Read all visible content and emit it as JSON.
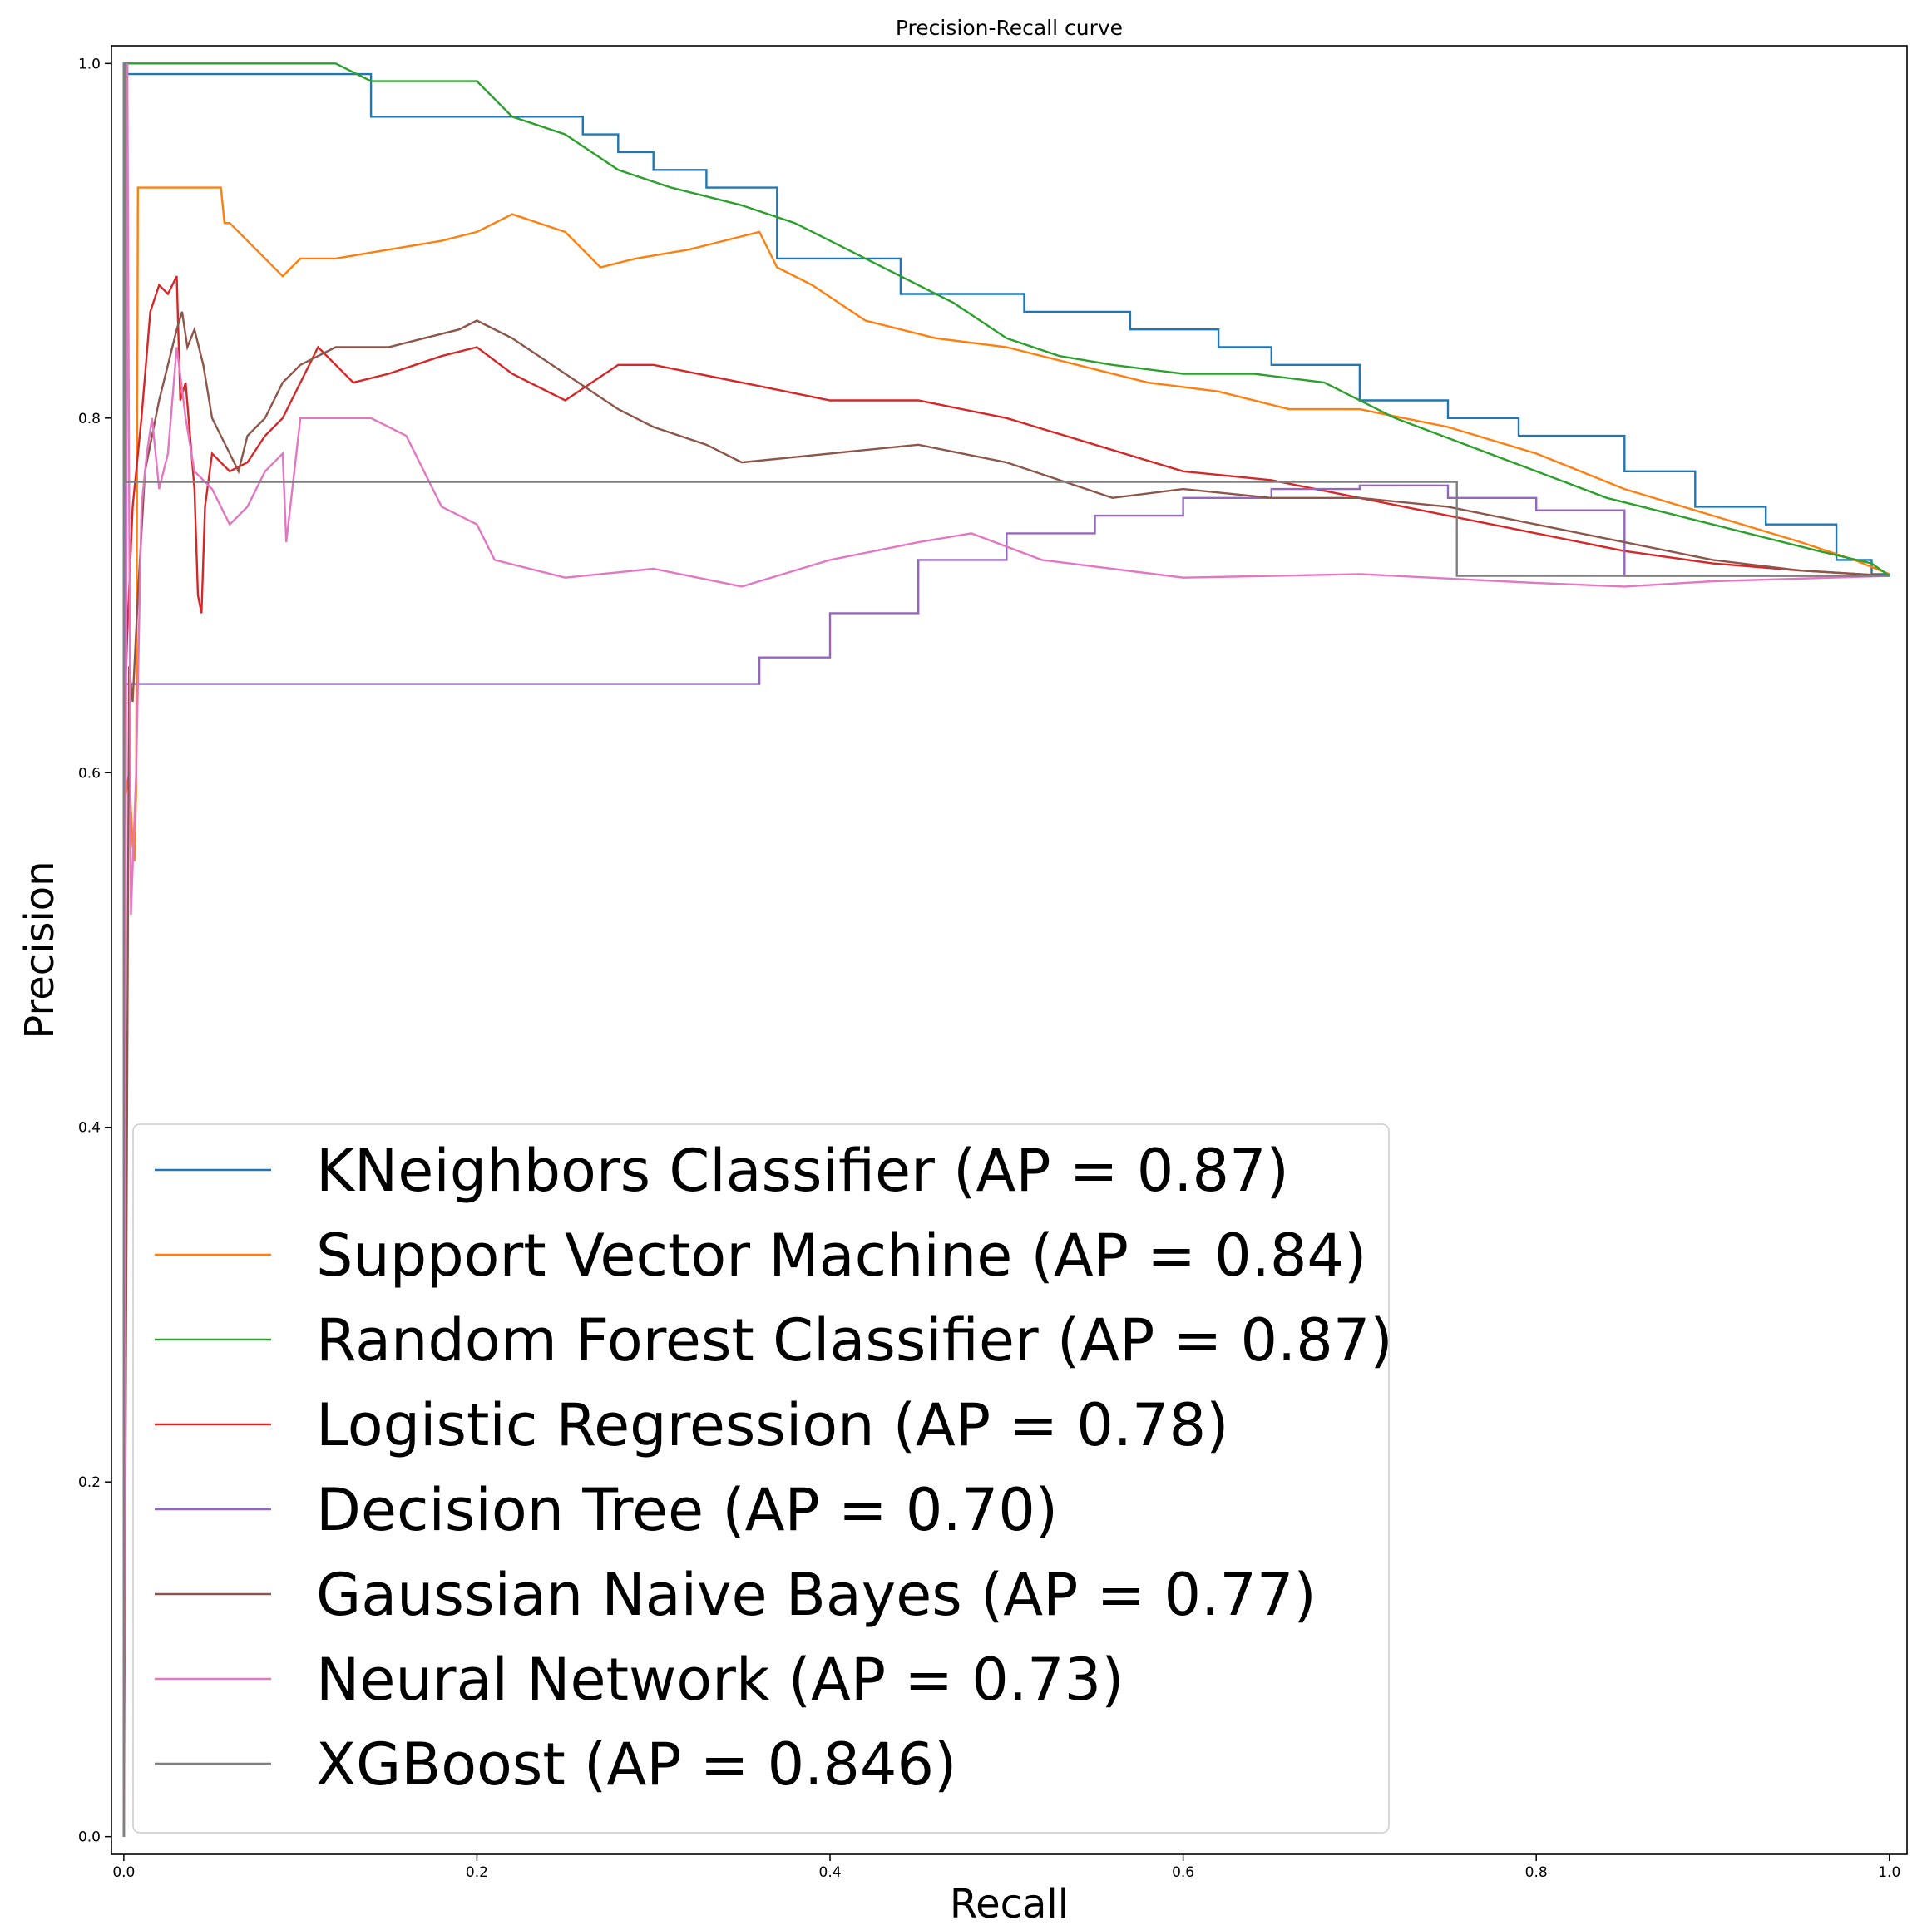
{
  "chart_data": {
    "type": "line",
    "title": "Precision-Recall curve",
    "xlabel": "Recall",
    "ylabel": "Precision",
    "xlim": [
      -0.007,
      1.01
    ],
    "ylim": [
      -0.01,
      1.01
    ],
    "xticks": [
      0.0,
      0.2,
      0.4,
      0.6,
      0.8,
      1.0
    ],
    "xtick_labels": [
      "0.0",
      "0.2",
      "0.4",
      "0.6",
      "0.8",
      "1.0"
    ],
    "yticks": [
      0.0,
      0.2,
      0.4,
      0.6,
      0.8,
      1.0
    ],
    "ytick_labels": [
      "0.0",
      "0.2",
      "0.4",
      "0.6",
      "0.8",
      "1.0"
    ],
    "grid": false,
    "legend_position": "lower-left",
    "series": [
      {
        "name": "KNeighbors Classifier (AP = 0.87)",
        "color": "#1f77b4",
        "step": true,
        "x": [
          0.0,
          0.0,
          0.002,
          0.12,
          0.14,
          0.2,
          0.26,
          0.28,
          0.3,
          0.33,
          0.37,
          0.38,
          0.44,
          0.49,
          0.51,
          0.57,
          0.62,
          0.65,
          0.7,
          0.75,
          0.79,
          0.85,
          0.89,
          0.93,
          0.97,
          0.99,
          1.0
        ],
        "y": [
          0.0,
          1.0,
          0.994,
          0.994,
          0.97,
          0.97,
          0.96,
          0.95,
          0.94,
          0.93,
          0.89,
          0.89,
          0.87,
          0.87,
          0.86,
          0.85,
          0.84,
          0.83,
          0.81,
          0.8,
          0.79,
          0.77,
          0.75,
          0.74,
          0.72,
          0.712,
          0.711
        ]
      },
      {
        "name": "Support Vector Machine (AP = 0.84)",
        "color": "#ff7f0e",
        "step": false,
        "x": [
          0.0,
          0.003,
          0.005,
          0.006,
          0.007,
          0.008,
          0.01,
          0.02,
          0.04,
          0.055,
          0.057,
          0.06,
          0.07,
          0.08,
          0.09,
          0.095,
          0.1,
          0.12,
          0.15,
          0.18,
          0.2,
          0.22,
          0.25,
          0.27,
          0.29,
          0.32,
          0.36,
          0.37,
          0.39,
          0.42,
          0.46,
          0.5,
          0.54,
          0.58,
          0.62,
          0.66,
          0.7,
          0.75,
          0.8,
          0.85,
          0.9,
          0.95,
          0.98,
          1.0
        ],
        "y": [
          0.58,
          0.6,
          0.56,
          0.55,
          0.59,
          0.93,
          0.93,
          0.93,
          0.93,
          0.93,
          0.91,
          0.91,
          0.9,
          0.89,
          0.88,
          0.885,
          0.89,
          0.89,
          0.895,
          0.9,
          0.905,
          0.915,
          0.905,
          0.885,
          0.89,
          0.895,
          0.905,
          0.885,
          0.875,
          0.855,
          0.845,
          0.84,
          0.83,
          0.82,
          0.815,
          0.805,
          0.805,
          0.795,
          0.78,
          0.76,
          0.745,
          0.73,
          0.72,
          0.712
        ]
      },
      {
        "name": "Random Forest Classifier (AP = 0.87)",
        "color": "#2ca02c",
        "step": false,
        "x": [
          0.0,
          0.001,
          0.12,
          0.14,
          0.2,
          0.22,
          0.25,
          0.28,
          0.31,
          0.35,
          0.38,
          0.41,
          0.44,
          0.47,
          0.5,
          0.53,
          0.56,
          0.6,
          0.64,
          0.68,
          0.72,
          0.76,
          0.8,
          0.84,
          0.88,
          0.92,
          0.96,
          0.99,
          1.0
        ],
        "y": [
          0.0,
          1.0,
          1.0,
          0.99,
          0.99,
          0.97,
          0.96,
          0.94,
          0.93,
          0.92,
          0.91,
          0.895,
          0.88,
          0.865,
          0.845,
          0.835,
          0.83,
          0.825,
          0.825,
          0.82,
          0.8,
          0.785,
          0.77,
          0.755,
          0.745,
          0.735,
          0.725,
          0.718,
          0.711
        ]
      },
      {
        "name": "Logistic Regression (AP = 0.78)",
        "color": "#d62728",
        "step": false,
        "x": [
          0.0,
          0.002,
          0.005,
          0.01,
          0.015,
          0.02,
          0.025,
          0.03,
          0.032,
          0.035,
          0.04,
          0.042,
          0.044,
          0.046,
          0.05,
          0.06,
          0.07,
          0.08,
          0.09,
          0.1,
          0.11,
          0.13,
          0.15,
          0.18,
          0.2,
          0.22,
          0.25,
          0.28,
          0.3,
          0.35,
          0.4,
          0.45,
          0.5,
          0.55,
          0.6,
          0.65,
          0.7,
          0.75,
          0.8,
          0.85,
          0.9,
          0.95,
          1.0
        ],
        "y": [
          0.62,
          0.68,
          0.75,
          0.8,
          0.86,
          0.875,
          0.87,
          0.88,
          0.81,
          0.82,
          0.76,
          0.7,
          0.69,
          0.75,
          0.78,
          0.77,
          0.775,
          0.79,
          0.8,
          0.82,
          0.84,
          0.82,
          0.825,
          0.835,
          0.84,
          0.825,
          0.81,
          0.83,
          0.83,
          0.82,
          0.81,
          0.81,
          0.8,
          0.785,
          0.77,
          0.765,
          0.755,
          0.745,
          0.735,
          0.725,
          0.718,
          0.714,
          0.711
        ]
      },
      {
        "name": "Decision Tree (AP = 0.70)",
        "color": "#9467bd",
        "step": true,
        "x": [
          0.0,
          0.0,
          0.001,
          0.345,
          0.36,
          0.4,
          0.45,
          0.5,
          0.55,
          0.6,
          0.65,
          0.7,
          0.75,
          0.8,
          0.85,
          0.85,
          1.0
        ],
        "y": [
          0.0,
          1.0,
          0.65,
          0.65,
          0.665,
          0.69,
          0.72,
          0.735,
          0.745,
          0.755,
          0.76,
          0.762,
          0.755,
          0.748,
          0.745,
          0.711,
          0.711
        ]
      },
      {
        "name": "Gaussian Naive Bayes (AP = 0.77)",
        "color": "#8c564b",
        "step": false,
        "x": [
          0.0,
          0.003,
          0.005,
          0.008,
          0.012,
          0.016,
          0.02,
          0.025,
          0.03,
          0.033,
          0.036,
          0.04,
          0.045,
          0.05,
          0.055,
          0.06,
          0.065,
          0.07,
          0.08,
          0.09,
          0.1,
          0.12,
          0.15,
          0.17,
          0.19,
          0.2,
          0.22,
          0.25,
          0.28,
          0.3,
          0.33,
          0.35,
          0.4,
          0.45,
          0.5,
          0.53,
          0.56,
          0.6,
          0.65,
          0.7,
          0.75,
          0.8,
          0.85,
          0.9,
          0.95,
          1.0
        ],
        "y": [
          0.0,
          0.66,
          0.64,
          0.7,
          0.77,
          0.79,
          0.81,
          0.83,
          0.85,
          0.86,
          0.84,
          0.85,
          0.83,
          0.8,
          0.79,
          0.78,
          0.77,
          0.79,
          0.8,
          0.82,
          0.83,
          0.84,
          0.84,
          0.845,
          0.85,
          0.855,
          0.845,
          0.825,
          0.805,
          0.795,
          0.785,
          0.775,
          0.78,
          0.785,
          0.775,
          0.765,
          0.755,
          0.76,
          0.755,
          0.755,
          0.75,
          0.74,
          0.73,
          0.72,
          0.714,
          0.711
        ]
      },
      {
        "name": "Neural Network (AP = 0.73)",
        "color": "#e377c2",
        "step": false,
        "x": [
          0.0,
          0.002,
          0.004,
          0.007,
          0.01,
          0.013,
          0.016,
          0.02,
          0.025,
          0.03,
          0.035,
          0.04,
          0.05,
          0.06,
          0.07,
          0.08,
          0.09,
          0.092,
          0.1,
          0.14,
          0.16,
          0.18,
          0.2,
          0.21,
          0.25,
          0.3,
          0.35,
          0.4,
          0.45,
          0.48,
          0.52,
          0.6,
          0.7,
          0.8,
          0.85,
          0.9,
          1.0
        ],
        "y": [
          0.0,
          1.0,
          0.52,
          0.6,
          0.75,
          0.78,
          0.8,
          0.76,
          0.78,
          0.84,
          0.8,
          0.77,
          0.76,
          0.74,
          0.75,
          0.77,
          0.78,
          0.73,
          0.8,
          0.8,
          0.79,
          0.75,
          0.74,
          0.72,
          0.71,
          0.715,
          0.705,
          0.72,
          0.73,
          0.735,
          0.72,
          0.71,
          0.712,
          0.707,
          0.705,
          0.708,
          0.711
        ]
      },
      {
        "name": "XGBoost (AP = 0.846)",
        "color": "#7f7f7f",
        "step": true,
        "x": [
          0.0,
          0.0,
          0.001,
          0.755,
          0.755,
          1.0
        ],
        "y": [
          0.0,
          1.0,
          0.764,
          0.764,
          0.711,
          0.711
        ]
      }
    ]
  }
}
